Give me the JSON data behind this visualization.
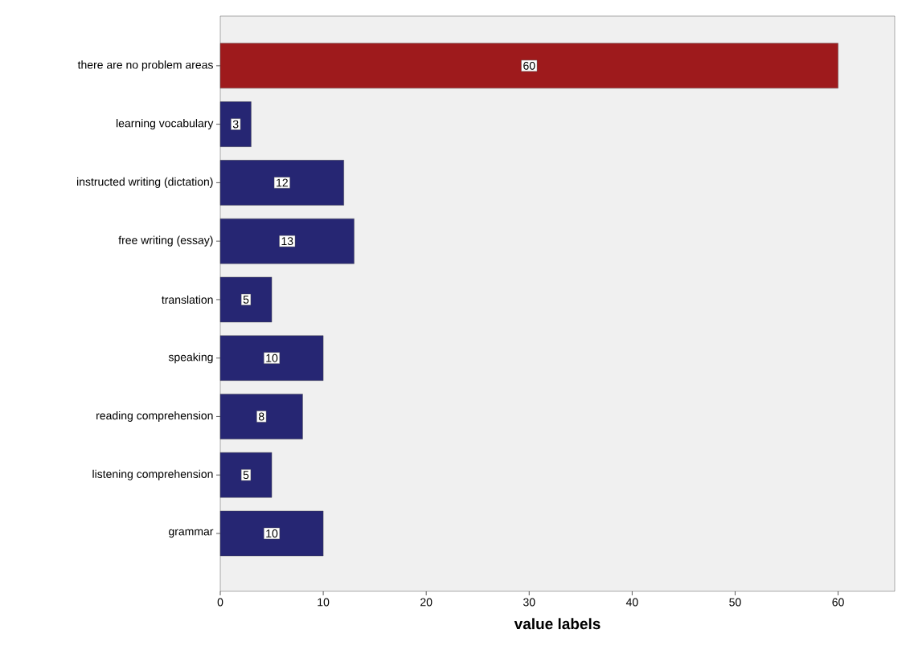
{
  "chart_data": {
    "type": "bar",
    "orientation": "horizontal",
    "xlabel": "value labels",
    "categories": [
      "there are no problem areas",
      "learning vocabulary",
      "instructed writing (dictation)",
      "free writing (essay)",
      "translation",
      "speaking",
      "reading comprehension",
      "listening comprehension",
      "grammar"
    ],
    "values": [
      60,
      3,
      12,
      13,
      5,
      10,
      8,
      5,
      10
    ],
    "colors": [
      "#9e1a1c",
      "#262673",
      "#262673",
      "#262673",
      "#262673",
      "#262673",
      "#262673",
      "#262673",
      "#262673"
    ],
    "xlim": [
      0,
      65.5
    ],
    "xticks": [
      0,
      10,
      20,
      30,
      40,
      50,
      60
    ],
    "data_labels": true
  }
}
